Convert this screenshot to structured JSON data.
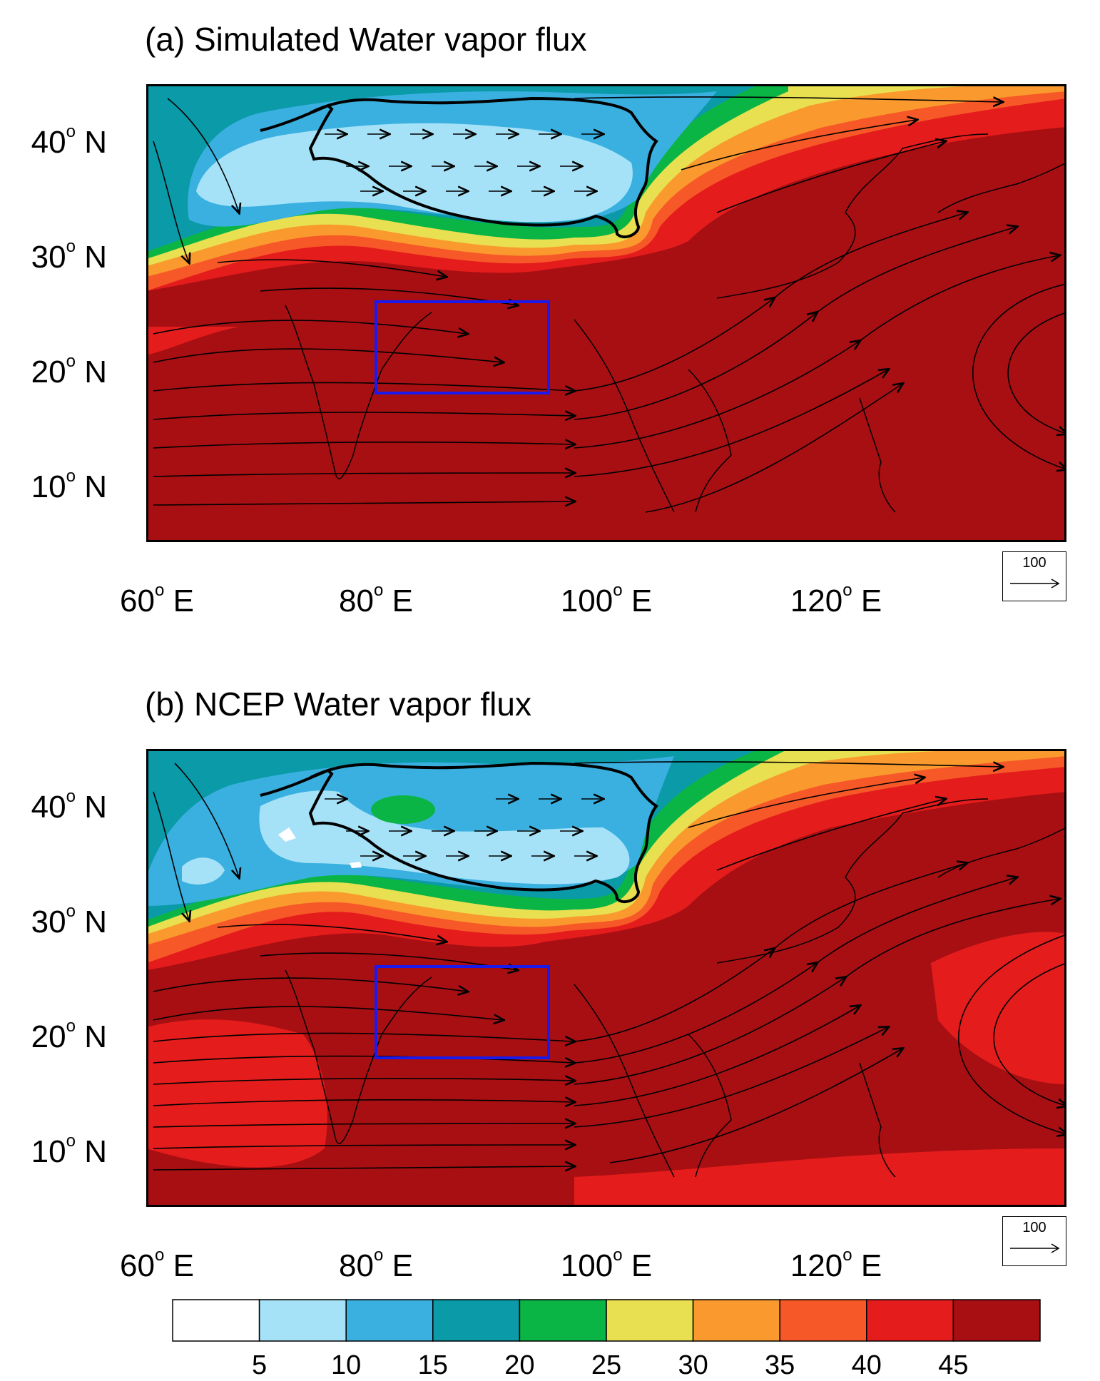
{
  "panels": [
    {
      "id": "a",
      "title": "(a) Simulated Water vapor flux",
      "ref_vector_label": "100"
    },
    {
      "id": "b",
      "title": "(b) NCEP Water vapor flux",
      "ref_vector_label": "100"
    }
  ],
  "axes": {
    "lat_ticks": [
      {
        "deg": "40",
        "hem": "N"
      },
      {
        "deg": "30",
        "hem": "N"
      },
      {
        "deg": "20",
        "hem": "N"
      },
      {
        "deg": "10",
        "hem": "N"
      }
    ],
    "lon_ticks": [
      {
        "deg": "60",
        "hem": "E"
      },
      {
        "deg": "80",
        "hem": "E"
      },
      {
        "deg": "100",
        "hem": "E"
      },
      {
        "deg": "120",
        "hem": "E"
      }
    ],
    "degree_symbol": "o"
  },
  "colorbar": {
    "labels": [
      "5",
      "10",
      "15",
      "20",
      "25",
      "30",
      "35",
      "40",
      "45"
    ],
    "colors": [
      "#ffffff",
      "#a6e2f7",
      "#3ab0e0",
      "#0a9aa8",
      "#0ab545",
      "#e8e050",
      "#fa9a2e",
      "#f75828",
      "#e41c1c",
      "#a80f12"
    ]
  },
  "highlight_box_color": "#1a1aef",
  "chart_data": {
    "type": "map",
    "domain": {
      "lon": [
        60,
        140
      ],
      "lat": [
        5,
        45
      ]
    },
    "units_levels": [
      5,
      10,
      15,
      20,
      25,
      30,
      35,
      40,
      45
    ],
    "study_region": {
      "lon": [
        80,
        95
      ],
      "lat": [
        18,
        26
      ]
    }
  }
}
